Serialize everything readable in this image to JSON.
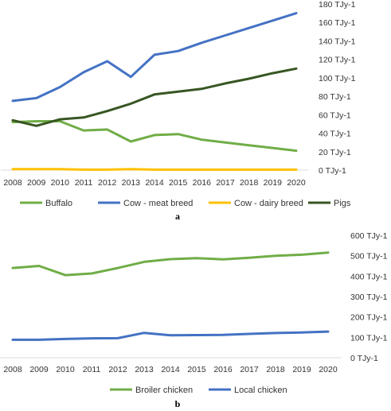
{
  "chart_data": [
    {
      "type": "line",
      "panel_label": "a",
      "title": "",
      "xlabel": "",
      "ylabel": "",
      "x": [
        "2008",
        "2009",
        "2010",
        "2011",
        "2012",
        "2013",
        "2014",
        "2015",
        "2016",
        "2017",
        "2018",
        "2019",
        "2020"
      ],
      "ylim": [
        0,
        180
      ],
      "y_ticks": [
        0,
        20,
        40,
        60,
        80,
        100,
        120,
        140,
        160,
        180
      ],
      "y_unit": "TJy-1",
      "y_axis_position": "right",
      "grid": false,
      "legend_position": "bottom",
      "series": [
        {
          "name": "Buffalo",
          "color": "#70ad47",
          "values": [
            52,
            53,
            53,
            43,
            44,
            31,
            38,
            39,
            33,
            30,
            27,
            24,
            21
          ]
        },
        {
          "name": "Cow - meat breed",
          "color": "#4472c4",
          "values": [
            75,
            78,
            90,
            106,
            118,
            101,
            125,
            129,
            138,
            146,
            154,
            162,
            170
          ]
        },
        {
          "name": "Cow - dairy breed",
          "color": "#ffc000",
          "values": [
            1,
            1,
            1,
            0.5,
            0.5,
            1,
            0.5,
            0.5,
            0.5,
            0.5,
            0.5,
            0.5,
            0.5
          ]
        },
        {
          "name": "Pigs",
          "color": "#375623",
          "values": [
            54,
            48,
            55,
            57,
            64,
            72,
            82,
            85,
            88,
            94,
            99,
            105,
            110
          ]
        }
      ]
    },
    {
      "type": "line",
      "panel_label": "b",
      "title": "",
      "xlabel": "",
      "ylabel": "",
      "x": [
        "2008",
        "2009",
        "2010",
        "2011",
        "2012",
        "2013",
        "2014",
        "2015",
        "2016",
        "2017",
        "2018",
        "2019",
        "2020"
      ],
      "ylim": [
        0,
        600
      ],
      "y_ticks": [
        0,
        100,
        200,
        300,
        400,
        500,
        600
      ],
      "y_unit": "TJy-1",
      "y_axis_position": "right",
      "grid": false,
      "legend_position": "bottom",
      "series": [
        {
          "name": "Broiler chicken",
          "color": "#70ad47",
          "values": [
            440,
            450,
            405,
            413,
            440,
            470,
            483,
            488,
            482,
            490,
            500,
            505,
            515
          ]
        },
        {
          "name": "Local chicken",
          "color": "#4472c4",
          "values": [
            88,
            88,
            92,
            95,
            96,
            122,
            110,
            111,
            112,
            117,
            121,
            124,
            128
          ]
        }
      ]
    }
  ]
}
